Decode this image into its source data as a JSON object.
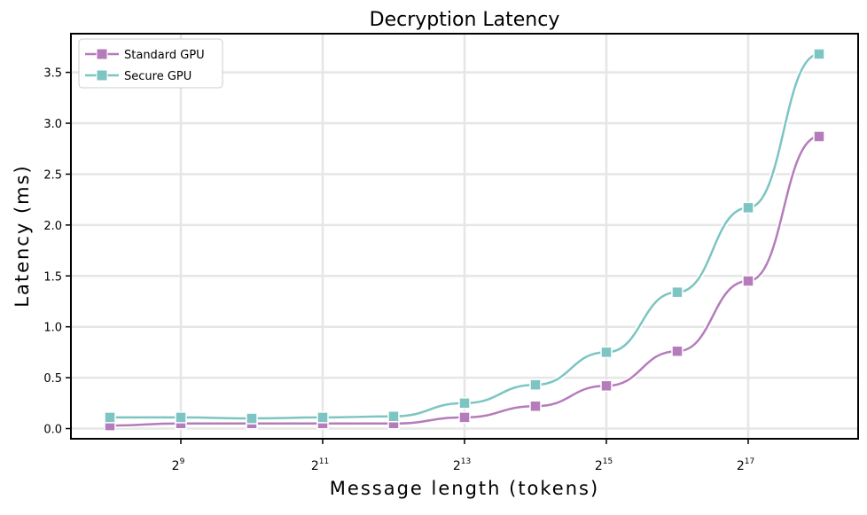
{
  "chart_data": {
    "type": "line",
    "title": "Decryption Latency",
    "xlabel": "Message length (tokens)",
    "ylabel": "Latency (ms)",
    "x_scale": "log2",
    "x": [
      256,
      512,
      1024,
      2048,
      4096,
      8192,
      16384,
      32768,
      65536,
      131072,
      262144
    ],
    "x_ticks": [
      {
        "value": 512,
        "base": "2",
        "exp": "9"
      },
      {
        "value": 2048,
        "base": "2",
        "exp": "11"
      },
      {
        "value": 8192,
        "base": "2",
        "exp": "13"
      },
      {
        "value": 32768,
        "base": "2",
        "exp": "15"
      },
      {
        "value": 131072,
        "base": "2",
        "exp": "17"
      }
    ],
    "y_ticks": [
      "0.0",
      "0.5",
      "1.0",
      "1.5",
      "2.0",
      "2.5",
      "3.0",
      "3.5"
    ],
    "ylim": [
      -0.1,
      3.88
    ],
    "xlim_exp": [
      7.45,
      18.55
    ],
    "grid": true,
    "legend_position": "top-left",
    "series": [
      {
        "name": "Standard GPU",
        "color": "#b57cbb",
        "values": [
          0.03,
          0.05,
          0.05,
          0.05,
          0.05,
          0.11,
          0.22,
          0.42,
          0.76,
          1.45,
          2.87
        ]
      },
      {
        "name": "Secure GPU",
        "color": "#7cc5c2",
        "values": [
          0.11,
          0.11,
          0.1,
          0.11,
          0.12,
          0.25,
          0.43,
          0.75,
          1.34,
          2.17,
          3.68
        ]
      }
    ]
  }
}
